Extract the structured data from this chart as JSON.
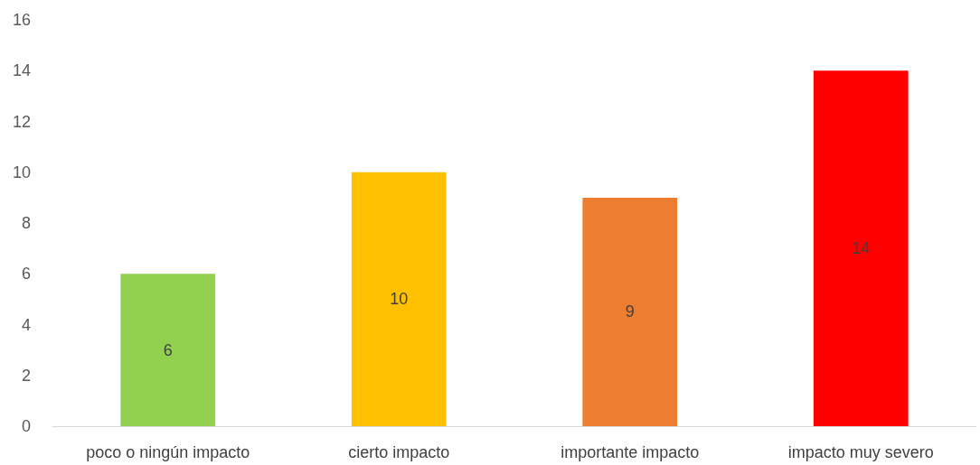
{
  "chart_data": {
    "type": "bar",
    "categories": [
      "poco o ningún impacto",
      "cierto impacto",
      "importante impacto",
      "impacto muy severo"
    ],
    "values": [
      6,
      10,
      9,
      14
    ],
    "colors": [
      "#92d050",
      "#ffc000",
      "#ed7d31",
      "#ff0000"
    ],
    "ylim": [
      0,
      16
    ],
    "yticks": [
      0,
      2,
      4,
      6,
      8,
      10,
      12,
      14,
      16
    ],
    "grid": false,
    "data_labels": true
  }
}
